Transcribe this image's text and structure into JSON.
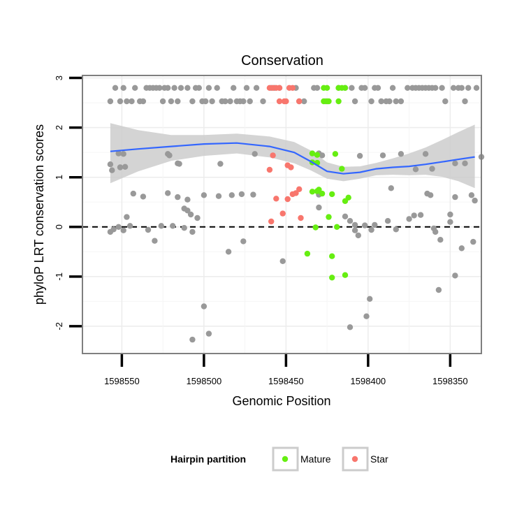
{
  "chart_data": {
    "type": "scatter",
    "title": "Conservation",
    "xlabel": "Genomic Position",
    "ylabel": "phyloP LRT conservation scores",
    "x_reversed": true,
    "xlim": [
      1598574,
      1598331
    ],
    "ylim": [
      -2.55,
      3.05
    ],
    "x_ticks": [
      1598550,
      1598500,
      1598450,
      1598400,
      1598350
    ],
    "x_tick_labels": [
      "1598550",
      "1598500",
      "1598450",
      "1598400",
      "1598350"
    ],
    "y_ticks": [
      -2,
      -1,
      0,
      1,
      2,
      3
    ],
    "y_tick_labels": [
      "-2",
      "-1",
      "0",
      "1",
      "2",
      "3"
    ],
    "grid": true,
    "reference_line": {
      "y": 0,
      "style": "dashed"
    },
    "colors": {
      "Other": "#999999",
      "Mature": "#66ee11",
      "Star": "#f8766d",
      "smooth": "#3366ff",
      "ribbon": "#cccccc"
    },
    "legend": {
      "title": "Hairpin partition",
      "position": "bottom",
      "entries": [
        {
          "label": "Mature",
          "color": "#66ee11"
        },
        {
          "label": "Star",
          "color": "#f8766d"
        }
      ]
    },
    "series": [
      {
        "group": "Other",
        "points": [
          [
            1598557,
            2.53
          ],
          [
            1598554,
            2.8
          ],
          [
            1598551,
            2.53
          ],
          [
            1598549,
            2.8
          ],
          [
            1598547,
            2.53
          ],
          [
            1598544,
            2.53
          ],
          [
            1598542,
            2.8
          ],
          [
            1598539,
            2.53
          ],
          [
            1598537,
            2.53
          ],
          [
            1598535,
            2.8
          ],
          [
            1598533,
            2.8
          ],
          [
            1598531,
            2.8
          ],
          [
            1598529,
            2.8
          ],
          [
            1598527,
            2.8
          ],
          [
            1598525,
            2.53
          ],
          [
            1598524,
            2.8
          ],
          [
            1598522,
            2.8
          ],
          [
            1598520,
            2.53
          ],
          [
            1598518,
            2.8
          ],
          [
            1598516,
            2.53
          ],
          [
            1598514,
            2.8
          ],
          [
            1598510,
            2.8
          ],
          [
            1598507,
            2.53
          ],
          [
            1598505,
            2.8
          ],
          [
            1598503,
            2.8
          ],
          [
            1598501,
            2.53
          ],
          [
            1598499,
            2.53
          ],
          [
            1598497,
            2.8
          ],
          [
            1598495,
            2.53
          ],
          [
            1598492,
            2.8
          ],
          [
            1598489,
            2.53
          ],
          [
            1598487,
            2.53
          ],
          [
            1598484,
            2.53
          ],
          [
            1598482,
            2.8
          ],
          [
            1598480,
            2.53
          ],
          [
            1598478,
            2.53
          ],
          [
            1598476,
            2.53
          ],
          [
            1598474,
            2.8
          ],
          [
            1598472,
            2.53
          ],
          [
            1598468,
            2.8
          ],
          [
            1598464,
            2.53
          ],
          [
            1598459,
            2.8
          ],
          [
            1598457,
            2.8
          ],
          [
            1598454,
            2.8
          ],
          [
            1598444,
            2.8
          ],
          [
            1598442,
            2.53
          ],
          [
            1598439,
            2.53
          ],
          [
            1598433,
            2.8
          ],
          [
            1598431,
            2.8
          ],
          [
            1598426,
            2.53
          ],
          [
            1598418,
            2.8
          ],
          [
            1598414,
            2.8
          ],
          [
            1598410,
            2.8
          ],
          [
            1598408,
            2.53
          ],
          [
            1598404,
            2.8
          ],
          [
            1598402,
            2.8
          ],
          [
            1598398,
            2.53
          ],
          [
            1598396,
            2.8
          ],
          [
            1598394,
            2.8
          ],
          [
            1598392,
            2.53
          ],
          [
            1598389,
            2.53
          ],
          [
            1598387,
            2.53
          ],
          [
            1598385,
            2.8
          ],
          [
            1598383,
            2.53
          ],
          [
            1598380,
            2.53
          ],
          [
            1598376,
            2.8
          ],
          [
            1598373,
            2.8
          ],
          [
            1598371,
            2.8
          ],
          [
            1598369,
            2.8
          ],
          [
            1598367,
            2.8
          ],
          [
            1598365,
            2.8
          ],
          [
            1598363,
            2.8
          ],
          [
            1598361,
            2.8
          ],
          [
            1598359,
            2.8
          ],
          [
            1598355,
            2.8
          ],
          [
            1598353,
            2.53
          ],
          [
            1598348,
            2.8
          ],
          [
            1598345,
            2.8
          ],
          [
            1598343,
            2.8
          ],
          [
            1598341,
            2.53
          ],
          [
            1598339,
            2.8
          ],
          [
            1598334,
            2.8
          ],
          [
            1598557,
            1.26
          ],
          [
            1598556,
            1.14
          ],
          [
            1598552,
            1.48
          ],
          [
            1598551,
            1.2
          ],
          [
            1598549,
            1.47
          ],
          [
            1598548,
            1.21
          ],
          [
            1598522,
            1.47
          ],
          [
            1598521,
            1.44
          ],
          [
            1598516,
            1.28
          ],
          [
            1598515,
            1.27
          ],
          [
            1598490,
            1.27
          ],
          [
            1598469,
            1.47
          ],
          [
            1598430,
            1.48
          ],
          [
            1598428,
            1.44
          ],
          [
            1598405,
            1.43
          ],
          [
            1598391,
            1.44
          ],
          [
            1598380,
            1.47
          ],
          [
            1598371,
            1.16
          ],
          [
            1598365,
            1.47
          ],
          [
            1598361,
            1.17
          ],
          [
            1598347,
            1.28
          ],
          [
            1598341,
            1.28
          ],
          [
            1598331,
            1.41
          ],
          [
            1598543,
            0.67
          ],
          [
            1598537,
            0.61
          ],
          [
            1598522,
            0.68
          ],
          [
            1598516,
            0.6
          ],
          [
            1598510,
            0.55
          ],
          [
            1598500,
            0.64
          ],
          [
            1598491,
            0.62
          ],
          [
            1598483,
            0.64
          ],
          [
            1598477,
            0.66
          ],
          [
            1598470,
            0.65
          ],
          [
            1598430,
            0.65
          ],
          [
            1598386,
            0.78
          ],
          [
            1598364,
            0.67
          ],
          [
            1598362,
            0.64
          ],
          [
            1598347,
            0.6
          ],
          [
            1598337,
            0.64
          ],
          [
            1598335,
            0.53
          ],
          [
            1598547,
            0.2
          ],
          [
            1598519,
            0.02
          ],
          [
            1598512,
            0.37
          ],
          [
            1598510,
            0.33
          ],
          [
            1598508,
            0.25
          ],
          [
            1598504,
            0.18
          ],
          [
            1598430,
            0.39
          ],
          [
            1598414,
            0.21
          ],
          [
            1598411,
            0.12
          ],
          [
            1598408,
            0.04
          ],
          [
            1598402,
            0.03
          ],
          [
            1598396,
            0.04
          ],
          [
            1598388,
            0.12
          ],
          [
            1598375,
            0.16
          ],
          [
            1598372,
            0.23
          ],
          [
            1598368,
            0.24
          ],
          [
            1598350,
            0.25
          ],
          [
            1598350,
            0.1
          ],
          [
            1598557,
            -0.1
          ],
          [
            1598555,
            -0.05
          ],
          [
            1598552,
            0
          ],
          [
            1598549,
            -0.07
          ],
          [
            1598545,
            0.02
          ],
          [
            1598534,
            -0.06
          ],
          [
            1598530,
            -0.28
          ],
          [
            1598526,
            0.02
          ],
          [
            1598512,
            -0.02
          ],
          [
            1598507,
            -0.1
          ],
          [
            1598485,
            -0.5
          ],
          [
            1598476,
            -0.29
          ],
          [
            1598408,
            -0.07
          ],
          [
            1598406,
            -0.17
          ],
          [
            1598398,
            -0.06
          ],
          [
            1598383,
            -0.05
          ],
          [
            1598360,
            -0.03
          ],
          [
            1598359,
            -0.1
          ],
          [
            1598356,
            -0.26
          ],
          [
            1598343,
            -0.43
          ],
          [
            1598336,
            -0.3
          ],
          [
            1598452,
            -0.69
          ],
          [
            1598500,
            -1.6
          ],
          [
            1598507,
            -2.27
          ],
          [
            1598497,
            -2.15
          ],
          [
            1598411,
            -2.02
          ],
          [
            1598399,
            -1.45
          ],
          [
            1598401,
            -1.8
          ],
          [
            1598357,
            -1.27
          ],
          [
            1598347,
            -0.98
          ]
        ]
      },
      {
        "group": "Mature",
        "points": [
          [
            1598427,
            2.8
          ],
          [
            1598425,
            2.8
          ],
          [
            1598418,
            2.8
          ],
          [
            1598416,
            2.8
          ],
          [
            1598414,
            2.8
          ],
          [
            1598427,
            2.53
          ],
          [
            1598425,
            2.53
          ],
          [
            1598424,
            2.53
          ],
          [
            1598418,
            2.53
          ],
          [
            1598434,
            1.48
          ],
          [
            1598431,
            1.45
          ],
          [
            1598431,
            1.29
          ],
          [
            1598434,
            1.3
          ],
          [
            1598420,
            1.47
          ],
          [
            1598416,
            1.17
          ],
          [
            1598434,
            0.71
          ],
          [
            1598431,
            0.72
          ],
          [
            1598430,
            0.75
          ],
          [
            1598428,
            0.67
          ],
          [
            1598422,
            0.66
          ],
          [
            1598414,
            0.52
          ],
          [
            1598412,
            0.59
          ],
          [
            1598424,
            0.2
          ],
          [
            1598432,
            -0.01
          ],
          [
            1598419,
            0
          ],
          [
            1598437,
            -0.54
          ],
          [
            1598422,
            -0.59
          ],
          [
            1598422,
            -1.02
          ],
          [
            1598414,
            -0.97
          ]
        ]
      },
      {
        "group": "Star",
        "points": [
          [
            1598460,
            2.8
          ],
          [
            1598458,
            2.8
          ],
          [
            1598456,
            2.8
          ],
          [
            1598454,
            2.8
          ],
          [
            1598448,
            2.8
          ],
          [
            1598446,
            2.8
          ],
          [
            1598454,
            2.53
          ],
          [
            1598451,
            2.53
          ],
          [
            1598450,
            2.53
          ],
          [
            1598442,
            2.53
          ],
          [
            1598458,
            1.44
          ],
          [
            1598460,
            1.15
          ],
          [
            1598449,
            1.24
          ],
          [
            1598447,
            1.2
          ],
          [
            1598442,
            0.76
          ],
          [
            1598444,
            0.68
          ],
          [
            1598446,
            0.66
          ],
          [
            1598449,
            0.56
          ],
          [
            1598456,
            0.57
          ],
          [
            1598452,
            0.27
          ],
          [
            1598441,
            0.18
          ],
          [
            1598459,
            0.11
          ]
        ]
      }
    ],
    "smooth_line": {
      "x": [
        1598557,
        1598540,
        1598520,
        1598500,
        1598480,
        1598460,
        1598445,
        1598435,
        1598425,
        1598415,
        1598405,
        1598395,
        1598385,
        1598375,
        1598365,
        1598355,
        1598345,
        1598335
      ],
      "y": [
        1.52,
        1.57,
        1.62,
        1.67,
        1.69,
        1.62,
        1.5,
        1.32,
        1.12,
        1.07,
        1.1,
        1.17,
        1.2,
        1.22,
        1.26,
        1.31,
        1.36,
        1.41
      ],
      "ribbon_low": [
        0.88,
        1.12,
        1.33,
        1.43,
        1.48,
        1.4,
        1.28,
        1.14,
        0.97,
        0.92,
        0.97,
        1.04,
        1.05,
        1.04,
        1.05,
        1.01,
        0.92,
        0.78
      ],
      "ribbon_high": [
        2.09,
        1.95,
        1.85,
        1.85,
        1.88,
        1.82,
        1.71,
        1.54,
        1.3,
        1.21,
        1.22,
        1.29,
        1.38,
        1.48,
        1.6,
        1.75,
        1.91,
        2.06
      ]
    }
  }
}
